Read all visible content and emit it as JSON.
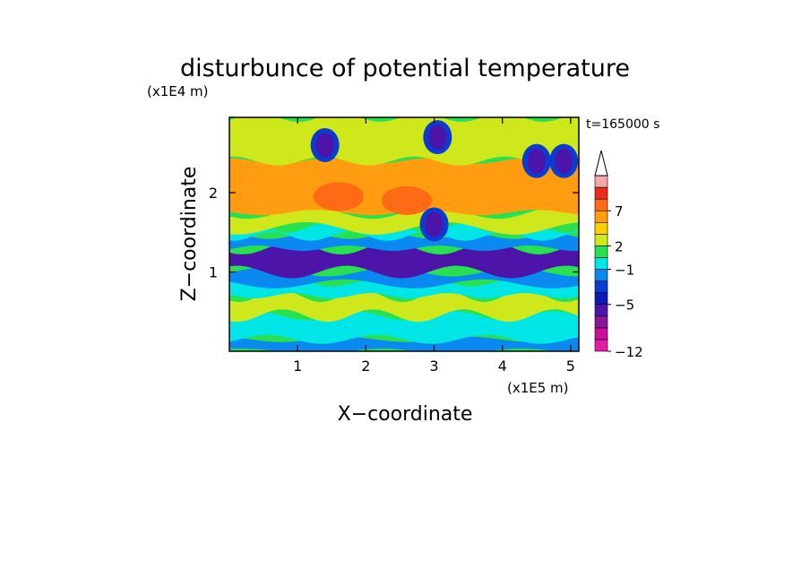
{
  "chart_data": {
    "type": "heatmap",
    "title": "disturbunce of potential temperature",
    "xlabel": "X−coordinate",
    "ylabel": "Z−coordinate",
    "x_unit": "(x1E5 m)",
    "y_unit": "(x1E4 m)",
    "time_label": "t=165000 s",
    "xlim": [
      0,
      5.12
    ],
    "ylim": [
      0,
      2.95
    ],
    "x_ticks": [
      1,
      2,
      3,
      4,
      5
    ],
    "y_ticks": [
      1,
      2
    ],
    "x_tick_labels": [
      "1",
      "2",
      "3",
      "4",
      "5"
    ],
    "y_tick_labels": [
      "1",
      "2"
    ],
    "colorbar": {
      "levels_low_to_high": [
        -12,
        -10,
        -8,
        -6,
        -5,
        -4,
        -2,
        -1,
        1,
        2,
        4,
        5,
        7,
        8,
        10,
        12
      ],
      "colors_low_to_high": [
        "#e41ca8",
        "#c8109c",
        "#8c1898",
        "#4c14a8",
        "#0c1cb4",
        "#0a3cd2",
        "#0a8af0",
        "#00e6e6",
        "#28e050",
        "#cfe81c",
        "#ffd000",
        "#ff9c10",
        "#ff6a14",
        "#ec2c1a",
        "#f4a9a9"
      ],
      "overflow_triangle_color": "#ffffff",
      "tick_labels": [
        "−12",
        "−5",
        "−1",
        "2",
        "7"
      ],
      "tick_values": [
        -12,
        -5,
        -1,
        2,
        7
      ]
    },
    "field_bands": [
      {
        "z_from": 0.0,
        "z_to": 0.15,
        "value_class": -1.5
      },
      {
        "z_from": 0.15,
        "z_to": 0.45,
        "value_class": 0
      },
      {
        "z_from": 0.45,
        "z_to": 0.7,
        "value_class": 3
      },
      {
        "z_from": 0.7,
        "z_to": 0.85,
        "value_class": 0
      },
      {
        "z_from": 0.85,
        "z_to": 1.0,
        "value_class": -2
      },
      {
        "z_from": 1.0,
        "z_to": 1.3,
        "value_class": -5.5
      },
      {
        "z_from": 1.3,
        "z_to": 1.45,
        "value_class": -2
      },
      {
        "z_from": 1.45,
        "z_to": 1.55,
        "value_class": 0
      },
      {
        "z_from": 1.55,
        "z_to": 1.75,
        "value_class": 3
      },
      {
        "z_from": 1.75,
        "z_to": 2.4,
        "value_class": 6
      },
      {
        "z_from": 2.4,
        "z_to": 2.95,
        "value_class": 2
      }
    ],
    "features": [
      {
        "x": 1.4,
        "z": 2.6,
        "value_class": -5.5
      },
      {
        "x": 3.05,
        "z": 2.7,
        "value_class": -5.5
      },
      {
        "x": 3.0,
        "z": 1.6,
        "value_class": -5.5
      },
      {
        "x": 1.6,
        "z": 1.95,
        "value_class": 7
      },
      {
        "x": 2.6,
        "z": 1.9,
        "value_class": 7
      },
      {
        "x": 4.5,
        "z": 2.4,
        "value_class": -5.5
      },
      {
        "x": 4.9,
        "z": 2.4,
        "value_class": -5.5
      }
    ]
  }
}
